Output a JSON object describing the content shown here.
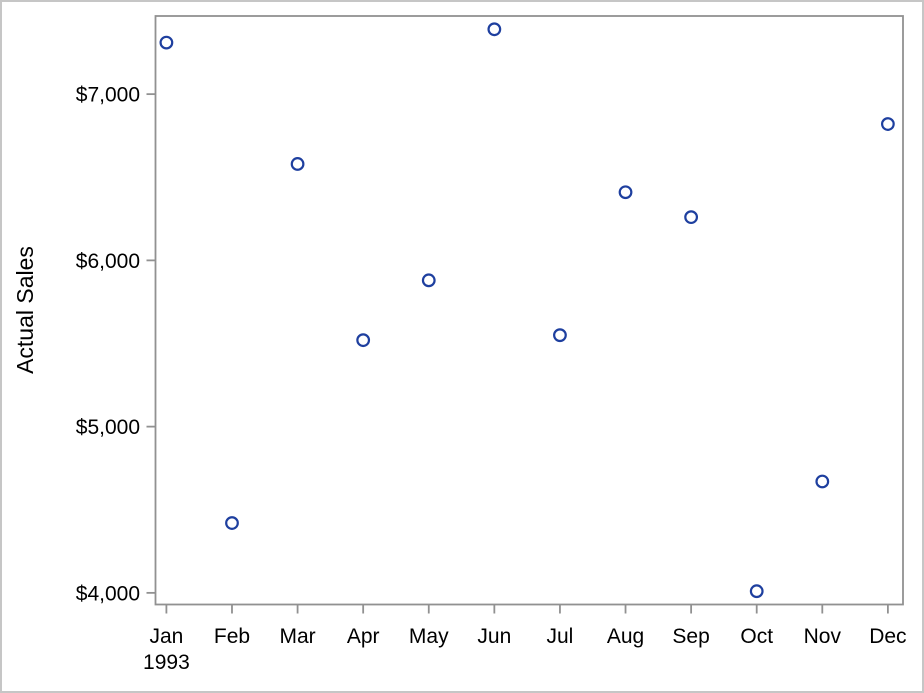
{
  "figure": {
    "background": "#ffffff",
    "outer_border_color": "#c6c6c6",
    "axis_color": "#919191",
    "text_color": "#000000"
  },
  "chart_data": {
    "type": "scatter",
    "title": "",
    "xlabel": "",
    "ylabel": "Actual Sales",
    "x_categories": [
      "Jan",
      "Feb",
      "Mar",
      "Apr",
      "May",
      "Jun",
      "Jul",
      "Aug",
      "Sep",
      "Oct",
      "Nov",
      "Dec"
    ],
    "x_year_label": "1993",
    "y_tick_values": [
      7000,
      6000,
      5000,
      4000
    ],
    "y_tick_labels": [
      "$7,000",
      "$6,000",
      "$5,000",
      "$4,000"
    ],
    "ylim": [
      3930,
      7470
    ],
    "grid": false,
    "legend": false,
    "marker": {
      "shape": "open-circle",
      "color": "#1e3f9f",
      "radius": 5.8,
      "stroke_width": 2.2
    },
    "series": [
      {
        "name": "Actual Sales 1993",
        "values": [
          7310,
          4420,
          6580,
          5520,
          5880,
          7390,
          5550,
          6410,
          6260,
          4010,
          4670,
          6820
        ]
      }
    ]
  }
}
